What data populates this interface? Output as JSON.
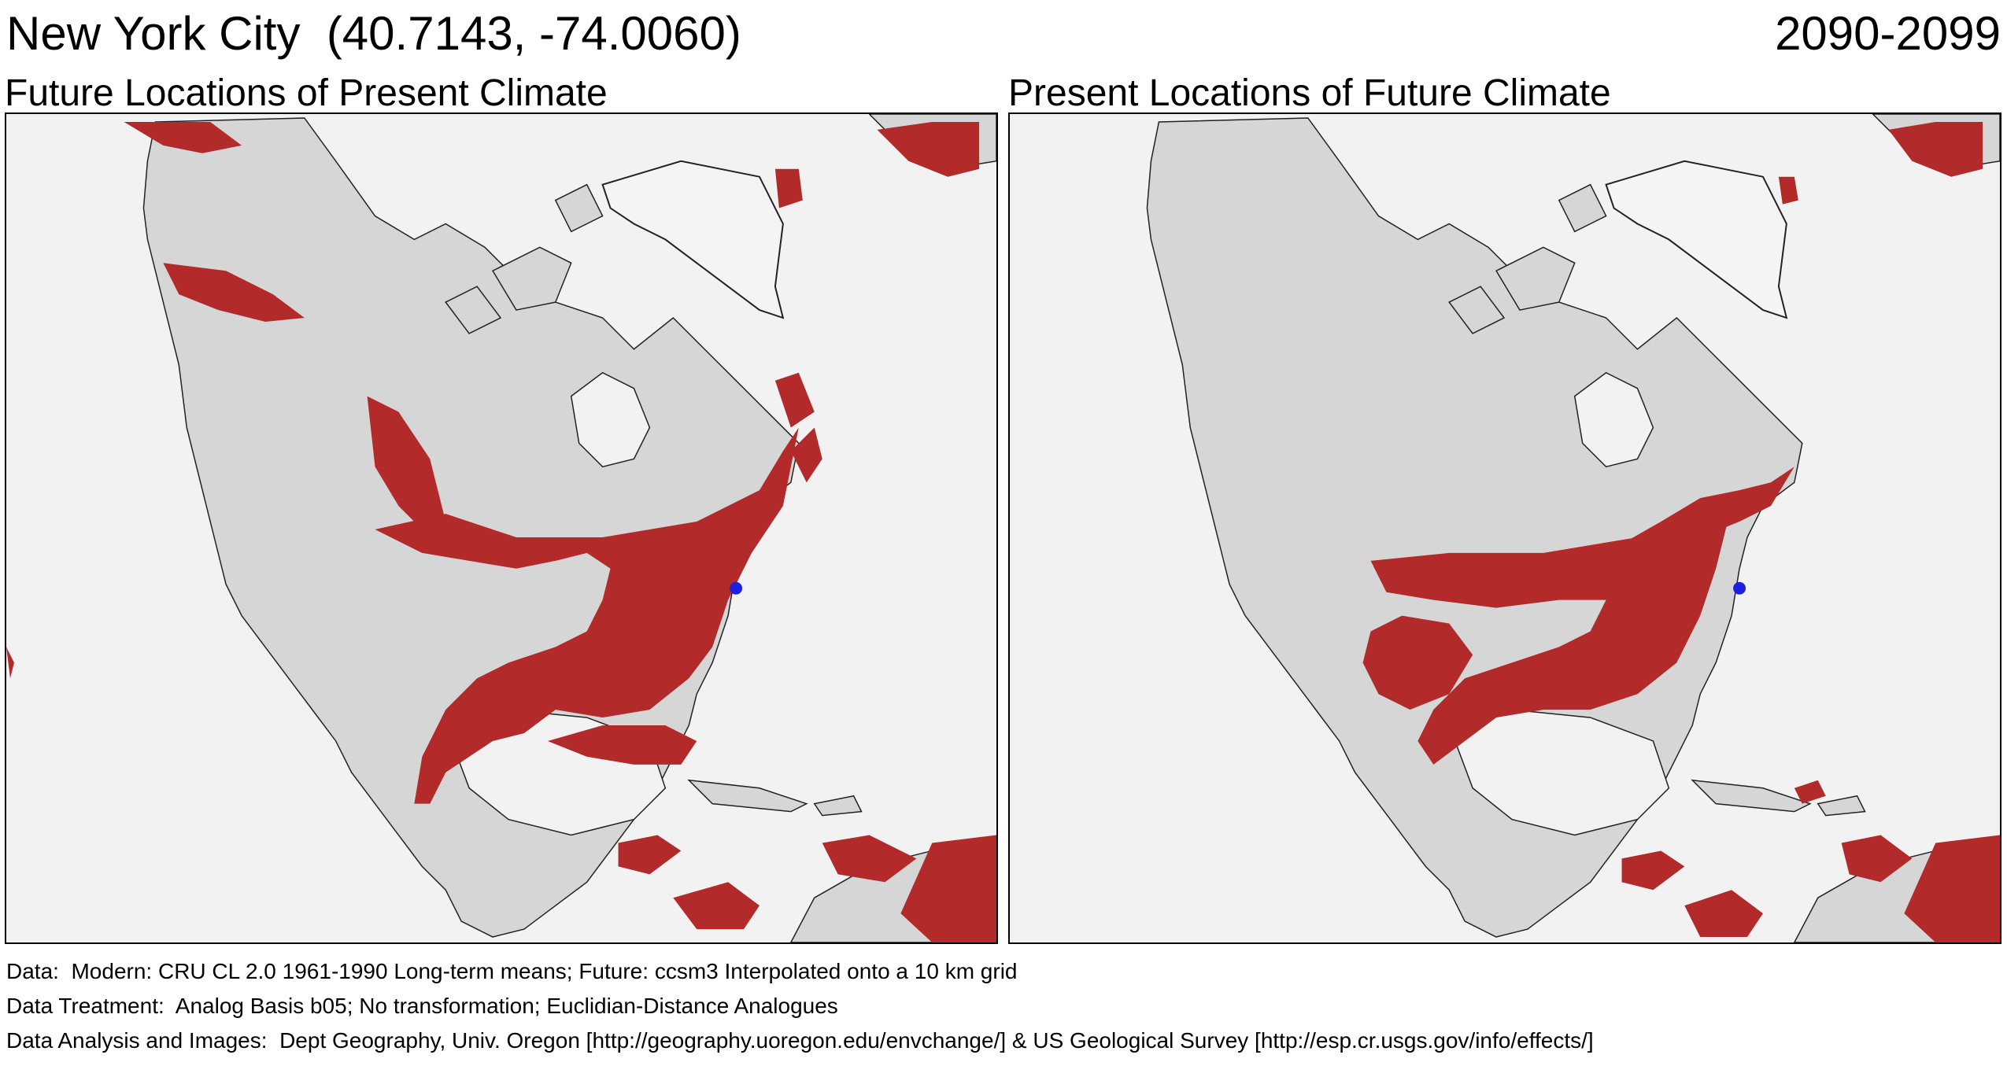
{
  "header": {
    "location": "New York City  (40.7143, -74.0060)",
    "period": "2090-2099"
  },
  "panels": [
    {
      "title": "Future Locations of Present Climate",
      "marker": "blue-dot-new-york",
      "highlight_color": "#b22a2a"
    },
    {
      "title": "Present Locations of Future Climate",
      "marker": "blue-dot-new-york",
      "highlight_color": "#b22a2a"
    }
  ],
  "colors": {
    "land": "#d9d9d9",
    "ocean": "#f2f2f2",
    "analog_area": "#b22a2a",
    "site_marker": "#1f1fe0",
    "greenland_ice": "#f7f7f7"
  },
  "footer": {
    "data": "Data:  Modern: CRU CL 2.0 1961-1990 Long-term means; Future: ccsm3 Interpolated onto a 10 km grid",
    "treatment": "Data Treatment:  Analog Basis b05; No transformation; Euclidian-Distance Analogues",
    "analysis": "Data Analysis and Images:  Dept Geography, Univ. Oregon [http://geography.uoregon.edu/envchange/] & US Geological Survey [http://esp.cr.usgs.gov/info/effects/]"
  }
}
